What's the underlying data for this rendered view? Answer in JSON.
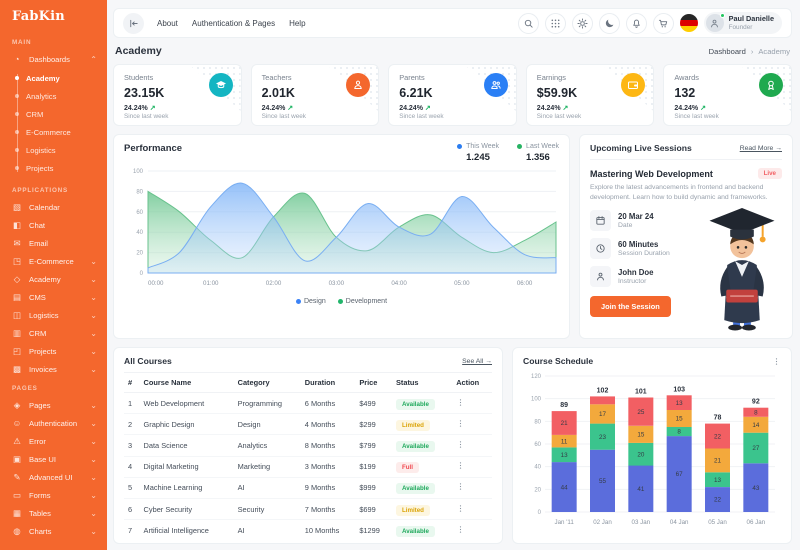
{
  "brand": {
    "logo": "FabKin"
  },
  "sidebar": {
    "sections": [
      {
        "label": "MAIN",
        "items": [
          {
            "label": "Dashboards",
            "icon": "dashboards-icon",
            "expanded": true,
            "children": [
              "Academy",
              "Analytics",
              "CRM",
              "E-Commerce",
              "Logistics",
              "Projects"
            ],
            "active_child": "Academy"
          }
        ]
      },
      {
        "label": "APPLICATIONS",
        "items": [
          {
            "label": "Calendar",
            "icon": "calendar-icon"
          },
          {
            "label": "Chat",
            "icon": "chat-icon"
          },
          {
            "label": "Email",
            "icon": "email-icon"
          },
          {
            "label": "E-Commerce",
            "icon": "ecommerce-icon",
            "chevron": true
          },
          {
            "label": "Academy",
            "icon": "academy-icon",
            "chevron": true
          },
          {
            "label": "CMS",
            "icon": "cms-icon",
            "chevron": true
          },
          {
            "label": "Logistics",
            "icon": "logistics-icon",
            "chevron": true
          },
          {
            "label": "CRM",
            "icon": "crm-icon",
            "chevron": true
          },
          {
            "label": "Projects",
            "icon": "projects-icon",
            "chevron": true
          },
          {
            "label": "Invoices",
            "icon": "invoices-icon",
            "chevron": true
          }
        ]
      },
      {
        "label": "PAGES",
        "items": [
          {
            "label": "Pages",
            "icon": "pages-icon",
            "chevron": true
          },
          {
            "label": "Authentication",
            "icon": "authentication-icon",
            "chevron": true
          },
          {
            "label": "Error",
            "icon": "error-icon",
            "chevron": true
          },
          {
            "label": "Base UI",
            "icon": "baseui-icon",
            "chevron": true
          },
          {
            "label": "Advanced UI",
            "icon": "advancedui-icon",
            "chevron": true
          },
          {
            "label": "Forms",
            "icon": "forms-icon",
            "chevron": true
          },
          {
            "label": "Tables",
            "icon": "tables-icon",
            "chevron": true
          },
          {
            "label": "Charts",
            "icon": "charts-icon",
            "chevron": true
          }
        ]
      }
    ]
  },
  "navbar": {
    "links": [
      "About",
      "Authentication & Pages",
      "Help"
    ],
    "buttons": [
      {
        "name": "search-icon"
      },
      {
        "name": "apps-icon"
      },
      {
        "name": "light-mode-sun-icon",
        "active": true
      },
      {
        "name": "dark-mode-moon-icon"
      },
      {
        "name": "notifications-bell-icon"
      },
      {
        "name": "cart-icon"
      }
    ],
    "flag": "germany-flag",
    "user": {
      "name": "Paul Danielle",
      "role": "Founder"
    }
  },
  "page_header": {
    "title": "Academy",
    "breadcrumb": [
      "Dashboard",
      "Academy"
    ]
  },
  "stats": [
    {
      "label": "Students",
      "value": "23.15K",
      "change": "24.24%",
      "trend": "up",
      "period": "Since last week",
      "icon": "graduation-cap-icon",
      "color": "#14b5c2"
    },
    {
      "label": "Teachers",
      "value": "2.01K",
      "change": "24.24%",
      "trend": "up",
      "period": "Since last week",
      "icon": "teacher-icon",
      "color": "#f4672d"
    },
    {
      "label": "Parents",
      "value": "6.21K",
      "change": "24.24%",
      "trend": "up",
      "period": "Since last week",
      "icon": "parents-icon",
      "color": "#2a7ff5"
    },
    {
      "label": "Earnings",
      "value": "$59.9K",
      "change": "24.24%",
      "trend": "up",
      "period": "Since last week",
      "icon": "wallet-icon",
      "color": "#fdb713"
    },
    {
      "label": "Awards",
      "value": "132",
      "change": "24.24%",
      "trend": "up",
      "period": "Since last week",
      "icon": "medal-icon",
      "color": "#1fa94f"
    }
  ],
  "performance": {
    "title": "Performance",
    "summary": [
      {
        "label": "This Week",
        "value": "1.245",
        "color": "#2b7df0"
      },
      {
        "label": "Last Week",
        "value": "1.356",
        "color": "#27b363"
      }
    ]
  },
  "live_session": {
    "title": "Upcoming Live Sessions",
    "read_more": "Read More →",
    "session_title": "Mastering Web Development",
    "badge": "Live",
    "description": "Explore the latest advancements in frontend and backend development. Learn how to build dynamic and frameworks.",
    "details": [
      {
        "icon": "calendar-icon",
        "value": "20 Mar 24",
        "label": "Date"
      },
      {
        "icon": "clock-icon",
        "value": "60 Minutes",
        "label": "Session Duration"
      },
      {
        "icon": "user-icon",
        "value": "John Doe",
        "label": "Instructor"
      }
    ],
    "button": "Join the Session"
  },
  "courses": {
    "title": "All Courses",
    "see_all": "See All →",
    "columns": [
      "#",
      "Course Name",
      "Category",
      "Duration",
      "Price",
      "Status",
      "Action"
    ],
    "rows": [
      [
        "1",
        "Web Development",
        "Programming",
        "6 Months",
        "$499",
        "Available"
      ],
      [
        "2",
        "Graphic Design",
        "Design",
        "4 Months",
        "$299",
        "Limited"
      ],
      [
        "3",
        "Data Science",
        "Analytics",
        "8 Months",
        "$799",
        "Available"
      ],
      [
        "4",
        "Digital Marketing",
        "Marketing",
        "3 Months",
        "$199",
        "Full"
      ],
      [
        "5",
        "Machine Learning",
        "AI",
        "9 Months",
        "$999",
        "Available"
      ],
      [
        "6",
        "Cyber Security",
        "Security",
        "7 Months",
        "$699",
        "Limited"
      ],
      [
        "7",
        "Artificial Intelligence",
        "AI",
        "10 Months",
        "$1299",
        "Available"
      ]
    ]
  },
  "schedule": {
    "title": "Course Schedule"
  },
  "chart_data": [
    {
      "type": "area",
      "title": "Performance",
      "x_hours": [
        0,
        0.5,
        1,
        1.5,
        2,
        2.5,
        3,
        3.5,
        4,
        4.5,
        5,
        5.5,
        6,
        6.5
      ],
      "x_ticks": [
        "00:00",
        "01:00",
        "02:00",
        "03:00",
        "04:00",
        "05:00",
        "06:00"
      ],
      "ylim": [
        0,
        100
      ],
      "yticks": [
        0,
        20,
        40,
        60,
        80,
        100
      ],
      "grid": true,
      "legend_position": "bottom",
      "series": [
        {
          "name": "Design",
          "color": "#3b82f6",
          "values": [
            5,
            20,
            65,
            88,
            55,
            12,
            35,
            68,
            45,
            38,
            75,
            45,
            18,
            15
          ]
        },
        {
          "name": "Development",
          "color": "#22b56b",
          "values": [
            80,
            60,
            32,
            15,
            55,
            78,
            35,
            22,
            45,
            57,
            35,
            20,
            32,
            50
          ]
        }
      ],
      "summary": [
        {
          "label": "This Week",
          "value": "1.245"
        },
        {
          "label": "Last Week",
          "value": "1.356"
        }
      ]
    },
    {
      "type": "stacked-bar",
      "title": "Course Schedule",
      "categories": [
        "Jan '11",
        "02 Jan",
        "03 Jan",
        "04 Jan",
        "05 Jan",
        "06 Jan"
      ],
      "series": [
        {
          "name": "segment-blue",
          "color": "#5b6ddc",
          "values": [
            44,
            55,
            41,
            67,
            22,
            43
          ]
        },
        {
          "name": "segment-green",
          "color": "#3bc48d",
          "values": [
            13,
            23,
            20,
            8,
            13,
            27
          ]
        },
        {
          "name": "segment-yellow",
          "color": "#f3a93c",
          "values": [
            11,
            17,
            15,
            15,
            21,
            14
          ]
        },
        {
          "name": "segment-red",
          "color": "#f25f63",
          "values": [
            21,
            7,
            25,
            13,
            22,
            8
          ]
        }
      ],
      "totals": [
        89,
        102,
        101,
        103,
        78,
        92
      ],
      "ylim": [
        0,
        120
      ],
      "yticks": [
        0,
        20,
        40,
        60,
        80,
        100,
        120
      ],
      "grid": true
    }
  ]
}
